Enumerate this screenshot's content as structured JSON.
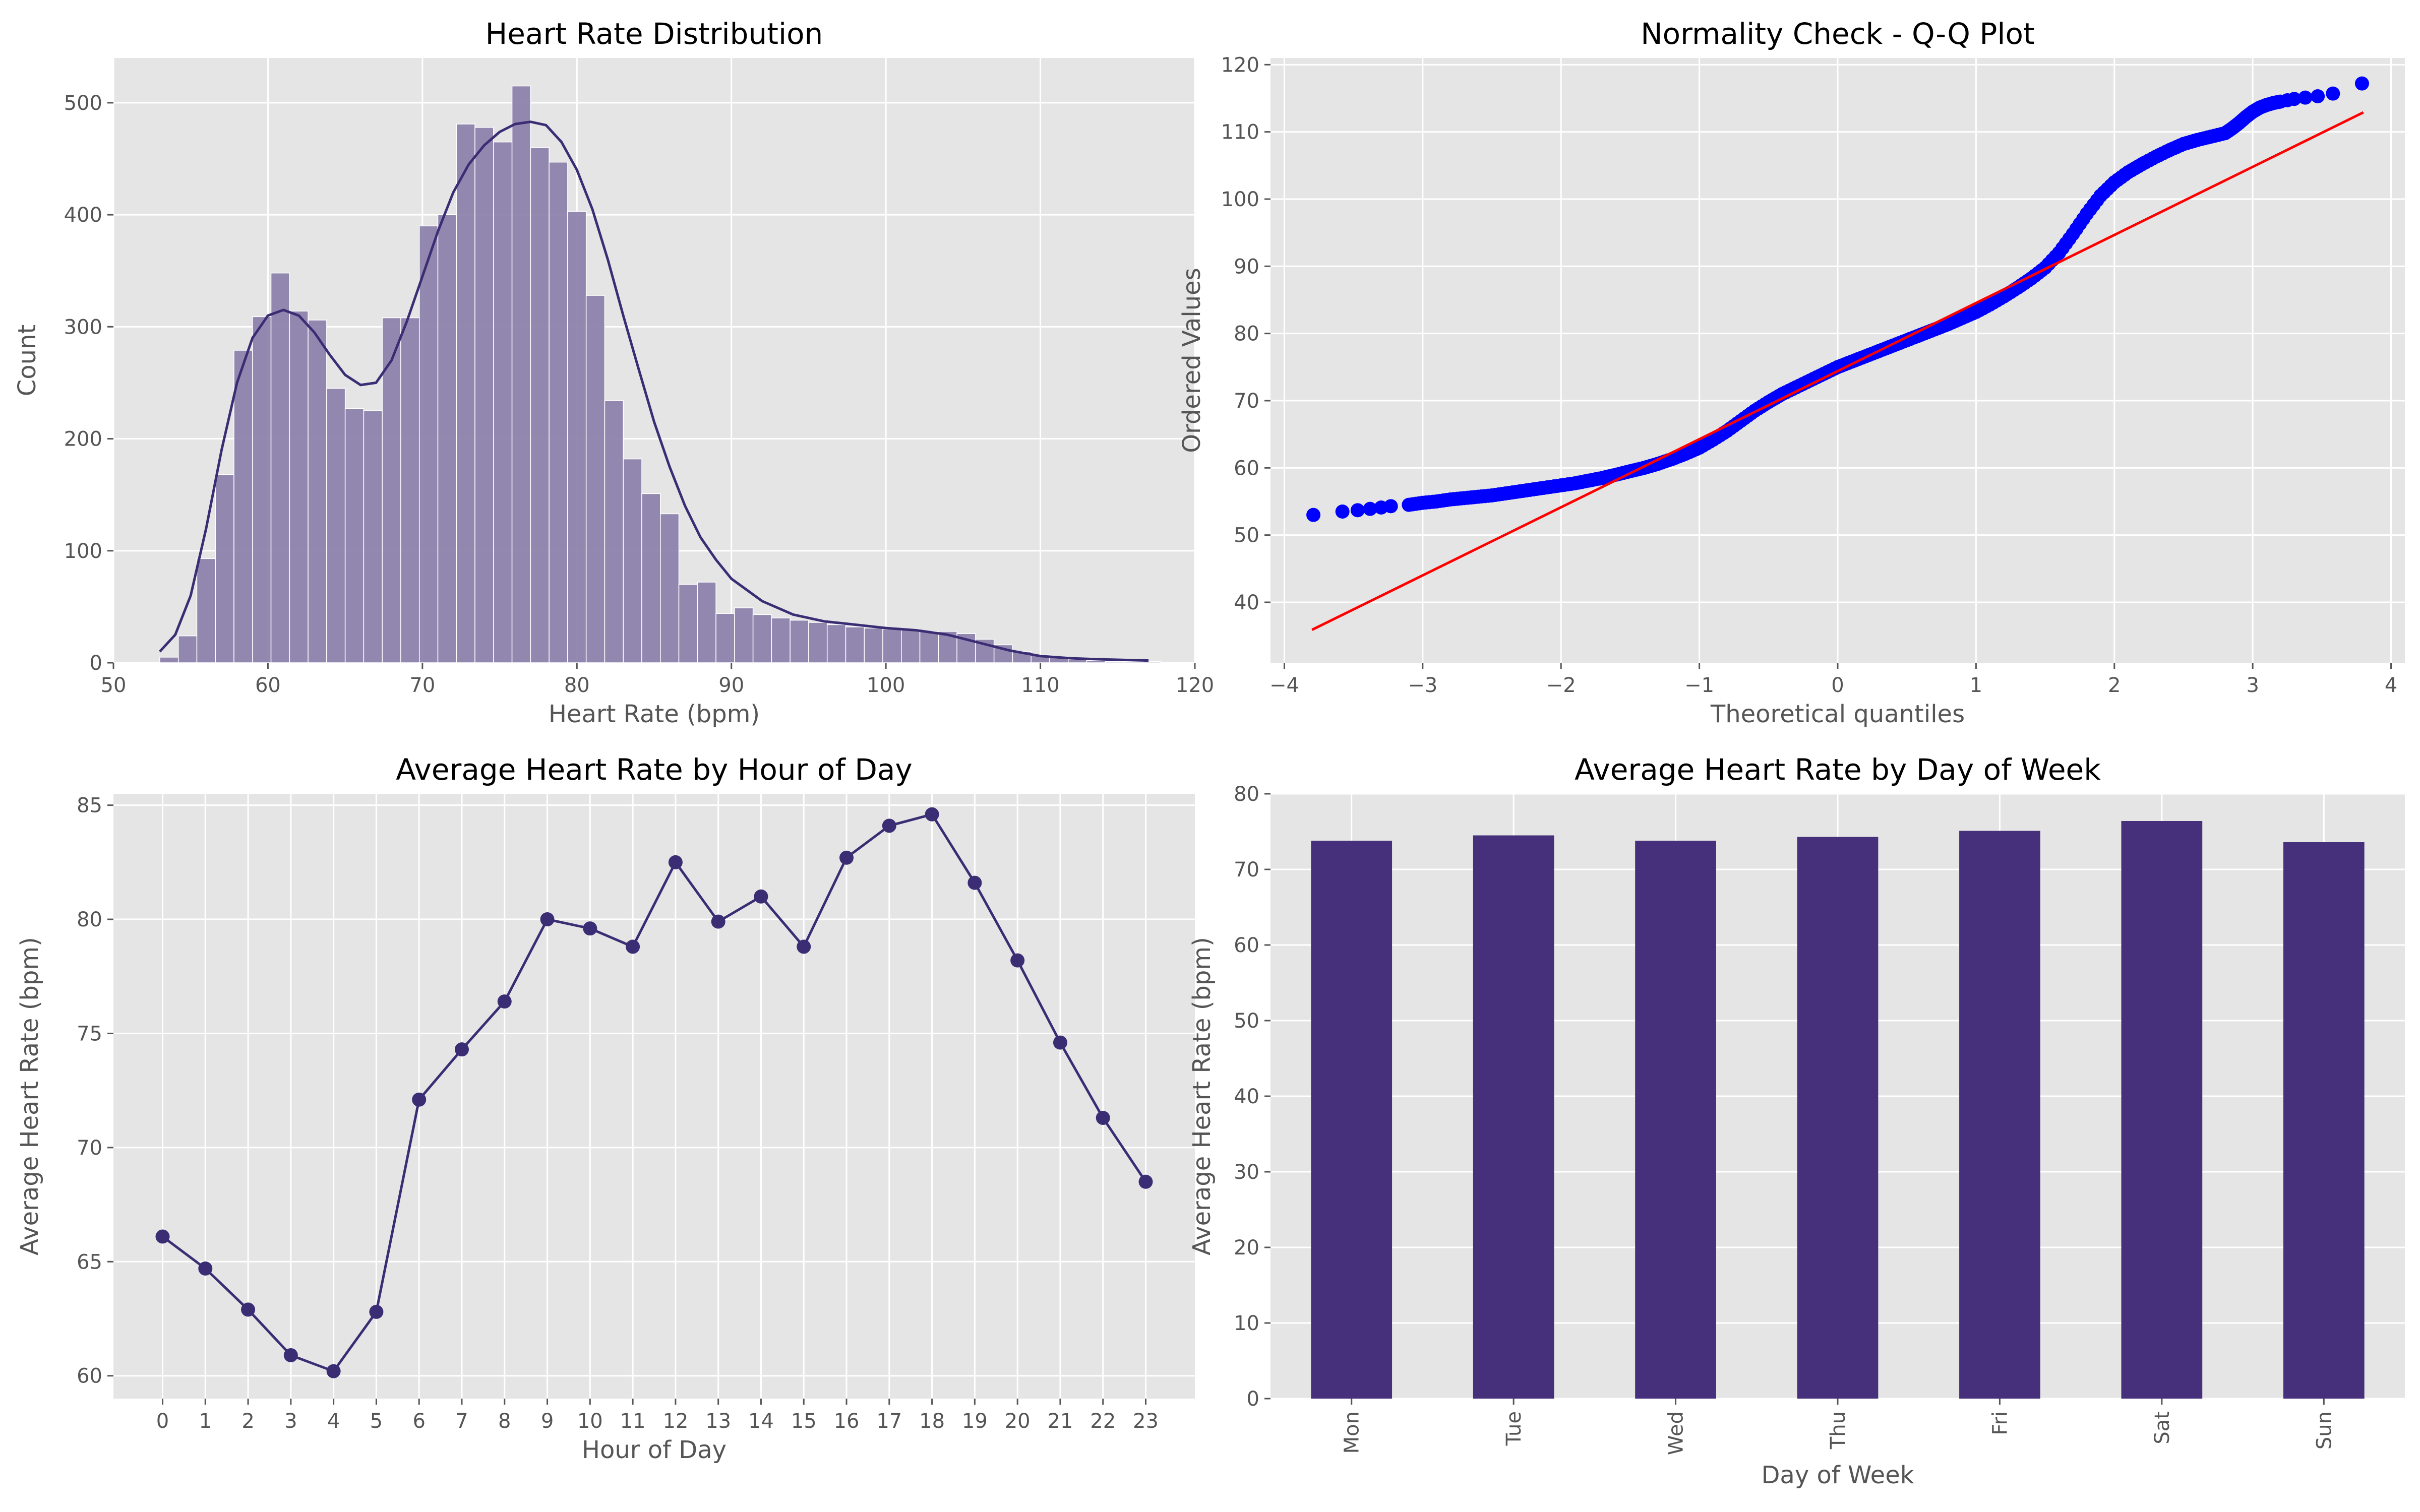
{
  "chart_data": [
    {
      "type": "bar",
      "subtype": "histogram-with-kde",
      "title": "Heart Rate Distribution",
      "xlabel": "Heart Rate (bpm)",
      "ylabel": "Count",
      "xlim": [
        50,
        120
      ],
      "ylim": [
        0,
        540
      ],
      "xticks": [
        50,
        60,
        70,
        80,
        90,
        100,
        110,
        120
      ],
      "yticks": [
        0,
        100,
        200,
        300,
        400,
        500
      ],
      "grid": true,
      "colors": {
        "bars": "#8b80aa",
        "kde": "#3a2d74"
      },
      "bins": {
        "start": 53.0,
        "width": 1.2,
        "counts": [
          5,
          24,
          93,
          168,
          279,
          309,
          348,
          314,
          306,
          245,
          227,
          225,
          308,
          308,
          390,
          400,
          481,
          478,
          465,
          515,
          460,
          447,
          403,
          328,
          234,
          182,
          151,
          133,
          70,
          72,
          44,
          49,
          43,
          40,
          38,
          36,
          34,
          32,
          31,
          30,
          30,
          28,
          28,
          26,
          21,
          16,
          10,
          7,
          5,
          3,
          2,
          1,
          1,
          1
        ]
      },
      "kde": {
        "x": [
          53,
          54,
          55,
          56,
          57,
          58,
          59,
          60,
          61,
          62,
          63,
          64,
          65,
          66,
          67,
          68,
          69,
          70,
          71,
          72,
          73,
          74,
          75,
          76,
          77,
          78,
          79,
          80,
          81,
          82,
          83,
          84,
          85,
          86,
          87,
          88,
          89,
          90,
          92,
          94,
          96,
          98,
          100,
          102,
          104,
          106,
          108,
          110,
          112,
          114,
          117
        ],
        "y": [
          10,
          25,
          60,
          120,
          190,
          250,
          290,
          310,
          315,
          310,
          295,
          275,
          257,
          248,
          250,
          270,
          305,
          345,
          385,
          420,
          445,
          462,
          474,
          481,
          483,
          480,
          465,
          440,
          405,
          360,
          310,
          262,
          215,
          175,
          140,
          112,
          92,
          75,
          55,
          43,
          37,
          34,
          31,
          29,
          25,
          18,
          11,
          6,
          4,
          3,
          2
        ]
      }
    },
    {
      "type": "scatter",
      "subtype": "qq-plot",
      "title": "Normality Check - Q-Q Plot",
      "xlabel": "Theoretical quantiles",
      "ylabel": "Ordered Values",
      "xlim": [
        -4.1,
        4.1
      ],
      "ylim": [
        31,
        121
      ],
      "xticks": [
        -4,
        -3,
        -2,
        -1,
        0,
        1,
        2,
        3,
        4
      ],
      "xtick_labels": [
        "−4",
        "−3",
        "−2",
        "−1",
        "0",
        "1",
        "2",
        "3",
        "4"
      ],
      "yticks": [
        40,
        50,
        60,
        70,
        80,
        90,
        100,
        110,
        120
      ],
      "grid": true,
      "colors": {
        "points": "#0000ff",
        "line": "#ff0000"
      },
      "points": {
        "x": [
          -3.79,
          -3.58,
          -3.47,
          -3.38,
          -3.3,
          -3.23,
          -3.1,
          -3.0,
          -2.9,
          -2.8,
          -2.7,
          -2.6,
          -2.5,
          -2.4,
          -2.3,
          -2.2,
          -2.1,
          -2.0,
          -1.9,
          -1.8,
          -1.7,
          -1.6,
          -1.5,
          -1.4,
          -1.3,
          -1.2,
          -1.1,
          -1.0,
          -0.9,
          -0.8,
          -0.7,
          -0.6,
          -0.5,
          -0.4,
          -0.3,
          -0.2,
          -0.1,
          0.0,
          0.1,
          0.2,
          0.3,
          0.4,
          0.5,
          0.6,
          0.7,
          0.8,
          0.9,
          1.0,
          1.1,
          1.2,
          1.3,
          1.4,
          1.5,
          1.6,
          1.7,
          1.8,
          1.9,
          2.0,
          2.1,
          2.2,
          2.3,
          2.4,
          2.5,
          2.6,
          2.7,
          2.8,
          2.85,
          2.9,
          2.95,
          3.0,
          3.05,
          3.1,
          3.15,
          3.2,
          3.25,
          3.3,
          3.38,
          3.47,
          3.58,
          3.79
        ],
        "y": [
          53.0,
          53.5,
          53.7,
          53.9,
          54.1,
          54.3,
          54.5,
          54.8,
          55.0,
          55.3,
          55.5,
          55.7,
          55.9,
          56.2,
          56.5,
          56.8,
          57.1,
          57.4,
          57.7,
          58.1,
          58.5,
          59.0,
          59.5,
          60.0,
          60.6,
          61.3,
          62.1,
          63.0,
          64.2,
          65.5,
          67.0,
          68.5,
          69.8,
          71.0,
          72.0,
          73.0,
          74.0,
          75.0,
          75.8,
          76.6,
          77.4,
          78.2,
          79.0,
          79.8,
          80.6,
          81.4,
          82.3,
          83.2,
          84.3,
          85.5,
          86.8,
          88.2,
          89.8,
          92.0,
          94.8,
          97.8,
          100.5,
          102.5,
          104.0,
          105.2,
          106.3,
          107.3,
          108.2,
          108.8,
          109.3,
          109.8,
          110.5,
          111.3,
          112.2,
          113.0,
          113.6,
          114.0,
          114.3,
          114.5,
          114.7,
          114.9,
          115.1,
          115.3,
          115.7,
          117.2
        ]
      },
      "fit_line": {
        "x": [
          -3.8,
          3.8
        ],
        "y": [
          35.9,
          112.9
        ]
      }
    },
    {
      "type": "line",
      "title": "Average Heart Rate by Hour of Day",
      "xlabel": "Hour of Day",
      "ylabel": "Average Heart Rate (bpm)",
      "xlim": [
        -1.15,
        24.15
      ],
      "ylim": [
        59.0,
        85.5
      ],
      "yticks": [
        60,
        65,
        70,
        75,
        80,
        85
      ],
      "grid": true,
      "markers": true,
      "colors": {
        "line": "#3a2d74"
      },
      "categories": [
        "0",
        "1",
        "2",
        "3",
        "4",
        "5",
        "6",
        "7",
        "8",
        "9",
        "10",
        "11",
        "12",
        "13",
        "14",
        "15",
        "16",
        "17",
        "18",
        "19",
        "20",
        "21",
        "22",
        "23"
      ],
      "values": [
        66.1,
        64.7,
        62.9,
        60.9,
        60.2,
        62.8,
        72.1,
        74.3,
        76.4,
        80.0,
        79.6,
        78.8,
        82.5,
        79.9,
        81.0,
        78.8,
        82.7,
        84.1,
        84.6,
        81.6,
        78.2,
        74.6,
        71.3,
        68.5
      ]
    },
    {
      "type": "bar",
      "title": "Average Heart Rate by Day of Week",
      "xlabel": "Day of Week",
      "ylabel": "Average Heart Rate (bpm)",
      "ylim": [
        0,
        80
      ],
      "yticks": [
        0,
        10,
        20,
        30,
        40,
        50,
        60,
        70,
        80
      ],
      "grid": true,
      "colors": {
        "bars": "#47307b"
      },
      "categories": [
        "Mon",
        "Tue",
        "Wed",
        "Thu",
        "Fri",
        "Sat",
        "Sun"
      ],
      "values": [
        73.8,
        74.5,
        73.8,
        74.3,
        75.1,
        76.4,
        73.6
      ]
    }
  ]
}
